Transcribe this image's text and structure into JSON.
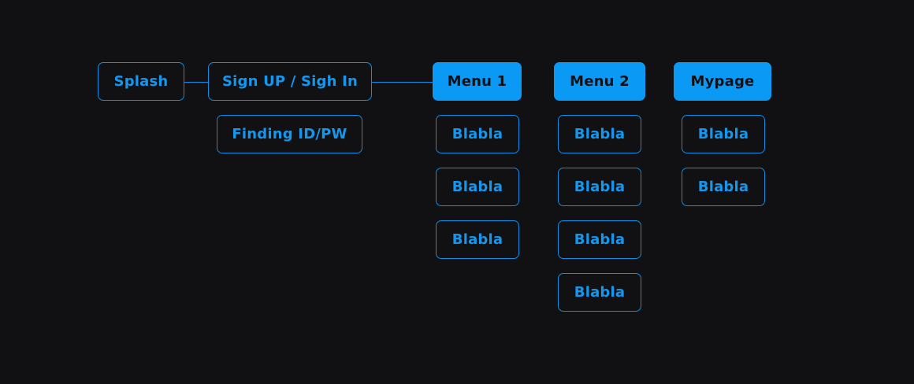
{
  "flow": {
    "splash": "Splash",
    "auth": "Sign UP / Sigh In",
    "finding": "Finding ID/PW",
    "menu1": {
      "title": "Menu 1",
      "items": [
        "Blabla",
        "Blabla",
        "Blabla"
      ]
    },
    "menu2": {
      "title": "Menu 2",
      "items": [
        "Blabla",
        "Blabla",
        "Blabla",
        "Blabla"
      ]
    },
    "mypage": {
      "title": "Mypage",
      "items": [
        "Blabla",
        "Blabla"
      ]
    }
  },
  "colors": {
    "background": "#111113",
    "accent": "#0a9af5"
  }
}
